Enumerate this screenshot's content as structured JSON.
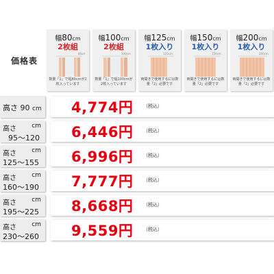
{
  "title": "価格表",
  "colors": {
    "price": "#e60012",
    "red_sub": "#d9262a",
    "blue_sub": "#2a5fb0",
    "curtain": "#f2c4a8"
  },
  "products": [
    {
      "pre": "幅",
      "width": "80",
      "unit": "cm",
      "sub": "2枚組",
      "sub_color": "red",
      "dim": "80cm",
      "note": "数量「1」で幅80cmが2枚入っています"
    },
    {
      "pre": "幅",
      "width": "100",
      "unit": "cm",
      "sub": "2枚組",
      "sub_color": "red",
      "dim": "100cm",
      "note": "数量「1」で幅100cmが2枚入っています"
    },
    {
      "pre": "幅",
      "width": "125",
      "unit": "cm",
      "sub": "1枚入り",
      "sub_color": "blue",
      "dim": "125cm",
      "note": "両開きで使用するには数量「2」必要です"
    },
    {
      "pre": "幅",
      "width": "150",
      "unit": "cm",
      "sub": "1枚入り",
      "sub_color": "blue",
      "dim": "150cm",
      "note": "両開きで使用するには数量「2」必要です"
    },
    {
      "pre": "幅",
      "width": "200",
      "unit": "cm",
      "sub": "1枚入り",
      "sub_color": "blue",
      "dim": "200cm",
      "note": "両開きで使用するには数量「2」必要です"
    }
  ],
  "rows": [
    {
      "line1": "高さ 90",
      "unit": "cm",
      "line2": "",
      "price": "4,774円",
      "tax": "（税込）"
    },
    {
      "line1": "高さ",
      "unit": "cm",
      "line2": "95～120",
      "price": "6,446円",
      "tax": "（税込）"
    },
    {
      "line1": "高さ",
      "unit": "cm",
      "line2": "125～155",
      "price": "6,996円",
      "tax": "（税込）"
    },
    {
      "line1": "高さ",
      "unit": "cm",
      "line2": "160～190",
      "price": "7,777円",
      "tax": "（税込）"
    },
    {
      "line1": "高さ",
      "unit": "cm",
      "line2": "195～225",
      "price": "8,668円",
      "tax": "（税込）"
    },
    {
      "line1": "高さ",
      "unit": "cm",
      "line2": "230～260",
      "price": "9,559円",
      "tax": "（税込）"
    }
  ]
}
